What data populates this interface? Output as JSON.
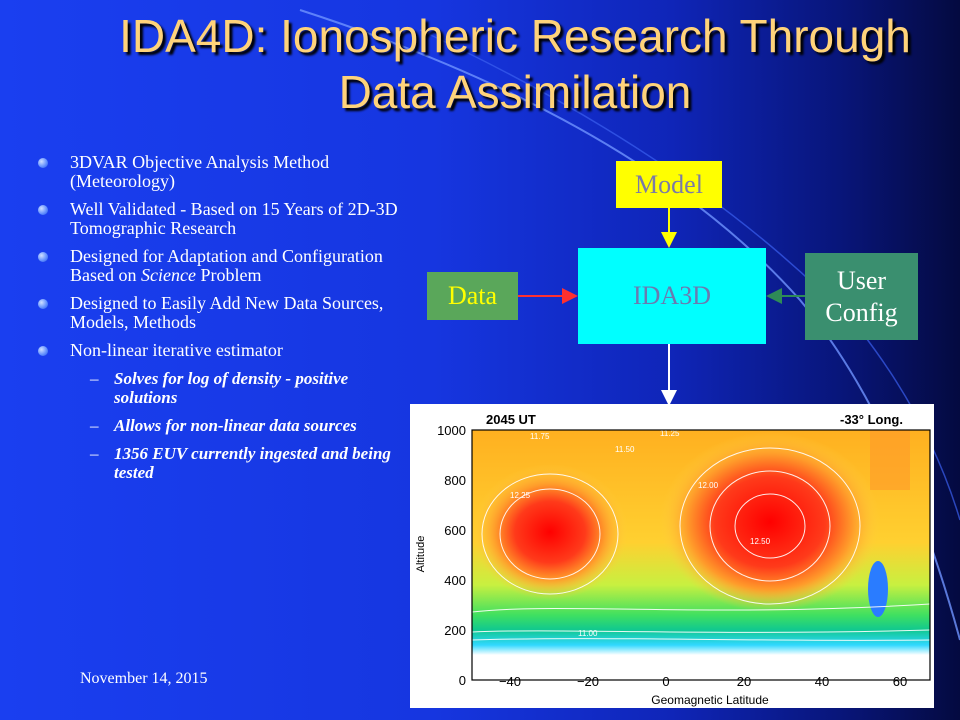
{
  "title": "IDA4D: Ionospheric Research Through Data Assimilation",
  "bullets": [
    "3DVAR Objective Analysis Method (Meteorology)",
    "Well Validated - Based on 15 Years of 2D-3D Tomographic Research",
    "Designed for Adaptation and Configuration Based on Science Problem",
    "Designed to Easily Add New Data Sources, Models, Methods",
    "Non-linear iterative estimator"
  ],
  "bullet3_prefix": "Designed for Adaptation and Configuration Based on ",
  "bullet3_italic": "Science",
  "bullet3_suffix": " Problem",
  "sub_bullets": [
    "Solves for log of density - positive solutions",
    "Allows for non-linear data sources",
    "1356 EUV currently ingested and being tested"
  ],
  "diagram": {
    "model": "Model",
    "ida": "IDA3D",
    "data": "Data",
    "user_line1": "User",
    "user_line2": "Config"
  },
  "plot": {
    "time_label": "2045 UT",
    "long_label": "-33° Long.",
    "ylabel": "Altitude",
    "xlabel": "Geomagnetic Latitude",
    "yticks": [
      "1000",
      "800",
      "600",
      "400",
      "200",
      "0"
    ],
    "xticks": [
      "−40",
      "−20",
      "0",
      "20",
      "40",
      "60"
    ],
    "contour_labels": [
      "11.75",
      "11.50",
      "11.25",
      "12.00",
      "12.25",
      "12.50",
      "11.00"
    ]
  },
  "footer_date": "November 14, 2015",
  "colors": {
    "title": "#ffd37a",
    "model_box": "#ffff00",
    "ida_box": "#00ffff",
    "data_box": "#5aa75a",
    "user_box": "#3a8f6f"
  }
}
